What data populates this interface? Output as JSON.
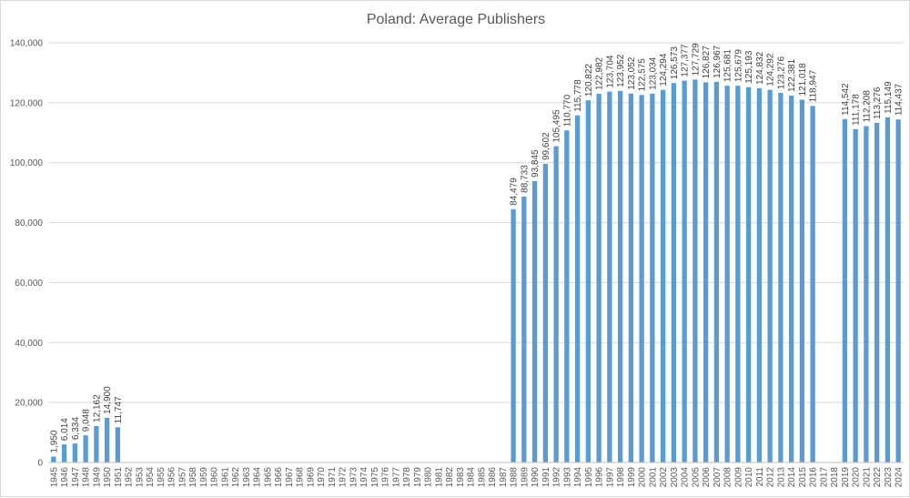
{
  "chart_data": {
    "type": "bar",
    "title": "Poland: Average Publishers",
    "xlabel": "",
    "ylabel": "",
    "ylim": [
      0,
      140000
    ],
    "yticks": [
      0,
      20000,
      40000,
      60000,
      80000,
      100000,
      120000,
      140000
    ],
    "ytick_labels": [
      "0",
      "20,000",
      "40,000",
      "60,000",
      "80,000",
      "100,000",
      "120,000",
      "140,000"
    ],
    "grid": true,
    "legend": "none",
    "bar_color": "#5B9BD5",
    "categories": [
      "1945",
      "1946",
      "1947",
      "1948",
      "1949",
      "1950",
      "1951",
      "1952",
      "1953",
      "1954",
      "1955",
      "1956",
      "1957",
      "1958",
      "1959",
      "1960",
      "1961",
      "1962",
      "1963",
      "1964",
      "1965",
      "1966",
      "1967",
      "1968",
      "1969",
      "1970",
      "1971",
      "1972",
      "1973",
      "1974",
      "1975",
      "1976",
      "1977",
      "1978",
      "1979",
      "1980",
      "1981",
      "1982",
      "1983",
      "1984",
      "1985",
      "1986",
      "1987",
      "1988",
      "1989",
      "1990",
      "1991",
      "1992",
      "1993",
      "1994",
      "1995",
      "1996",
      "1997",
      "1998",
      "1999",
      "2000",
      "2001",
      "2002",
      "2003",
      "2004",
      "2005",
      "2006",
      "2007",
      "2008",
      "2009",
      "2010",
      "2011",
      "2012",
      "2013",
      "2014",
      "2015",
      "2016",
      "2017",
      "2018",
      "2019",
      "2020",
      "2021",
      "2022",
      "2023",
      "2024"
    ],
    "values": [
      1950,
      6014,
      6334,
      9048,
      12162,
      14900,
      11747,
      null,
      null,
      null,
      null,
      null,
      null,
      null,
      null,
      null,
      null,
      null,
      null,
      null,
      null,
      null,
      null,
      null,
      null,
      null,
      null,
      null,
      null,
      null,
      null,
      null,
      null,
      null,
      null,
      null,
      null,
      null,
      null,
      null,
      null,
      null,
      null,
      84479,
      88733,
      93845,
      99602,
      105495,
      110770,
      115778,
      120822,
      122982,
      123704,
      123952,
      123052,
      122575,
      123034,
      124294,
      126573,
      127377,
      127729,
      126827,
      126967,
      125681,
      125679,
      125193,
      124832,
      124292,
      123276,
      122381,
      121018,
      118947,
      null,
      null,
      114542,
      111178,
      112208,
      113276,
      115149,
      114437
    ],
    "value_labels": [
      "1,950",
      "6,014",
      "6,334",
      "9,048",
      "12,162",
      "14,900",
      "11,747",
      "",
      "",
      "",
      "",
      "",
      "",
      "",
      "",
      "",
      "",
      "",
      "",
      "",
      "",
      "",
      "",
      "",
      "",
      "",
      "",
      "",
      "",
      "",
      "",
      "",
      "",
      "",
      "",
      "",
      "",
      "",
      "",
      "",
      "",
      "",
      "",
      "84,479",
      "88,733",
      "93,845",
      "99,602",
      "105,495",
      "110,770",
      "115,778",
      "120,822",
      "122,982",
      "123,704",
      "123,952",
      "123,052",
      "122,575",
      "123,034",
      "124,294",
      "126,573",
      "127,377",
      "127,729",
      "126,827",
      "126,967",
      "125,681",
      "125,679",
      "125,193",
      "124,832",
      "124,292",
      "123,276",
      "122,381",
      "121,018",
      "118,947",
      "",
      "",
      "114,542",
      "111,178",
      "112,208",
      "113,276",
      "115,149",
      "114,437"
    ]
  }
}
